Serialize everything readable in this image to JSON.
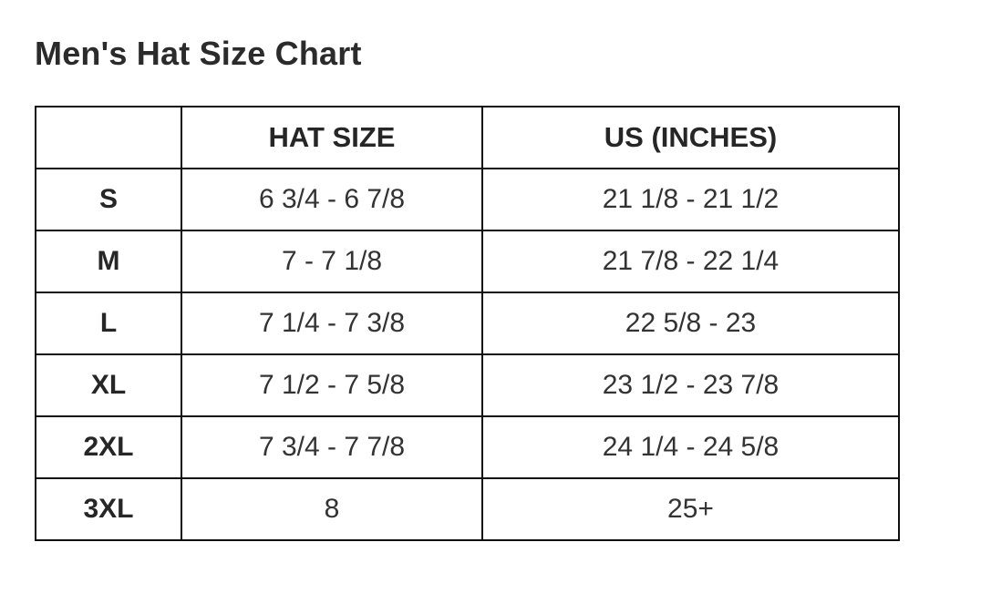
{
  "page": {
    "title": "Men's Hat Size Chart"
  },
  "table": {
    "headers": [
      "",
      "HAT SIZE",
      "US (INCHES)"
    ],
    "rows": [
      {
        "size": "S",
        "hat_size": "6 3/4 - 6 7/8",
        "us_inches": "21 1/8 - 21 1/2"
      },
      {
        "size": "M",
        "hat_size": "7 - 7 1/8",
        "us_inches": "21 7/8 - 22 1/4"
      },
      {
        "size": "L",
        "hat_size": "7 1/4 - 7 3/8",
        "us_inches": "22 5/8 - 23"
      },
      {
        "size": "XL",
        "hat_size": "7 1/2 - 7 5/8",
        "us_inches": "23 1/2 - 23 7/8"
      },
      {
        "size": "2XL",
        "hat_size": "7 3/4 - 7 7/8",
        "us_inches": "24 1/4 - 24 5/8"
      },
      {
        "size": "3XL",
        "hat_size": "8",
        "us_inches": "25+"
      }
    ]
  },
  "chart_data": {
    "type": "table",
    "title": "Men's Hat Size Chart",
    "columns": [
      "",
      "HAT SIZE",
      "US (INCHES)"
    ],
    "rows": [
      [
        "S",
        "6 3/4 - 6 7/8",
        "21 1/8 - 21 1/2"
      ],
      [
        "M",
        "7 - 7 1/8",
        "21 7/8 - 22 1/4"
      ],
      [
        "L",
        "7 1/4 - 7 3/8",
        "22 5/8 - 23"
      ],
      [
        "XL",
        "7 1/2 - 7 5/8",
        "23 1/2 - 23 7/8"
      ],
      [
        "2XL",
        "7 3/4 - 7 7/8",
        "24 1/4 - 24 5/8"
      ],
      [
        "3XL",
        "8",
        "25+"
      ]
    ]
  },
  "colors": {
    "background": "#ffffff",
    "text": "#2e2e2e",
    "heading_text": "#2b2b2b",
    "border": "#0f0f0f"
  }
}
